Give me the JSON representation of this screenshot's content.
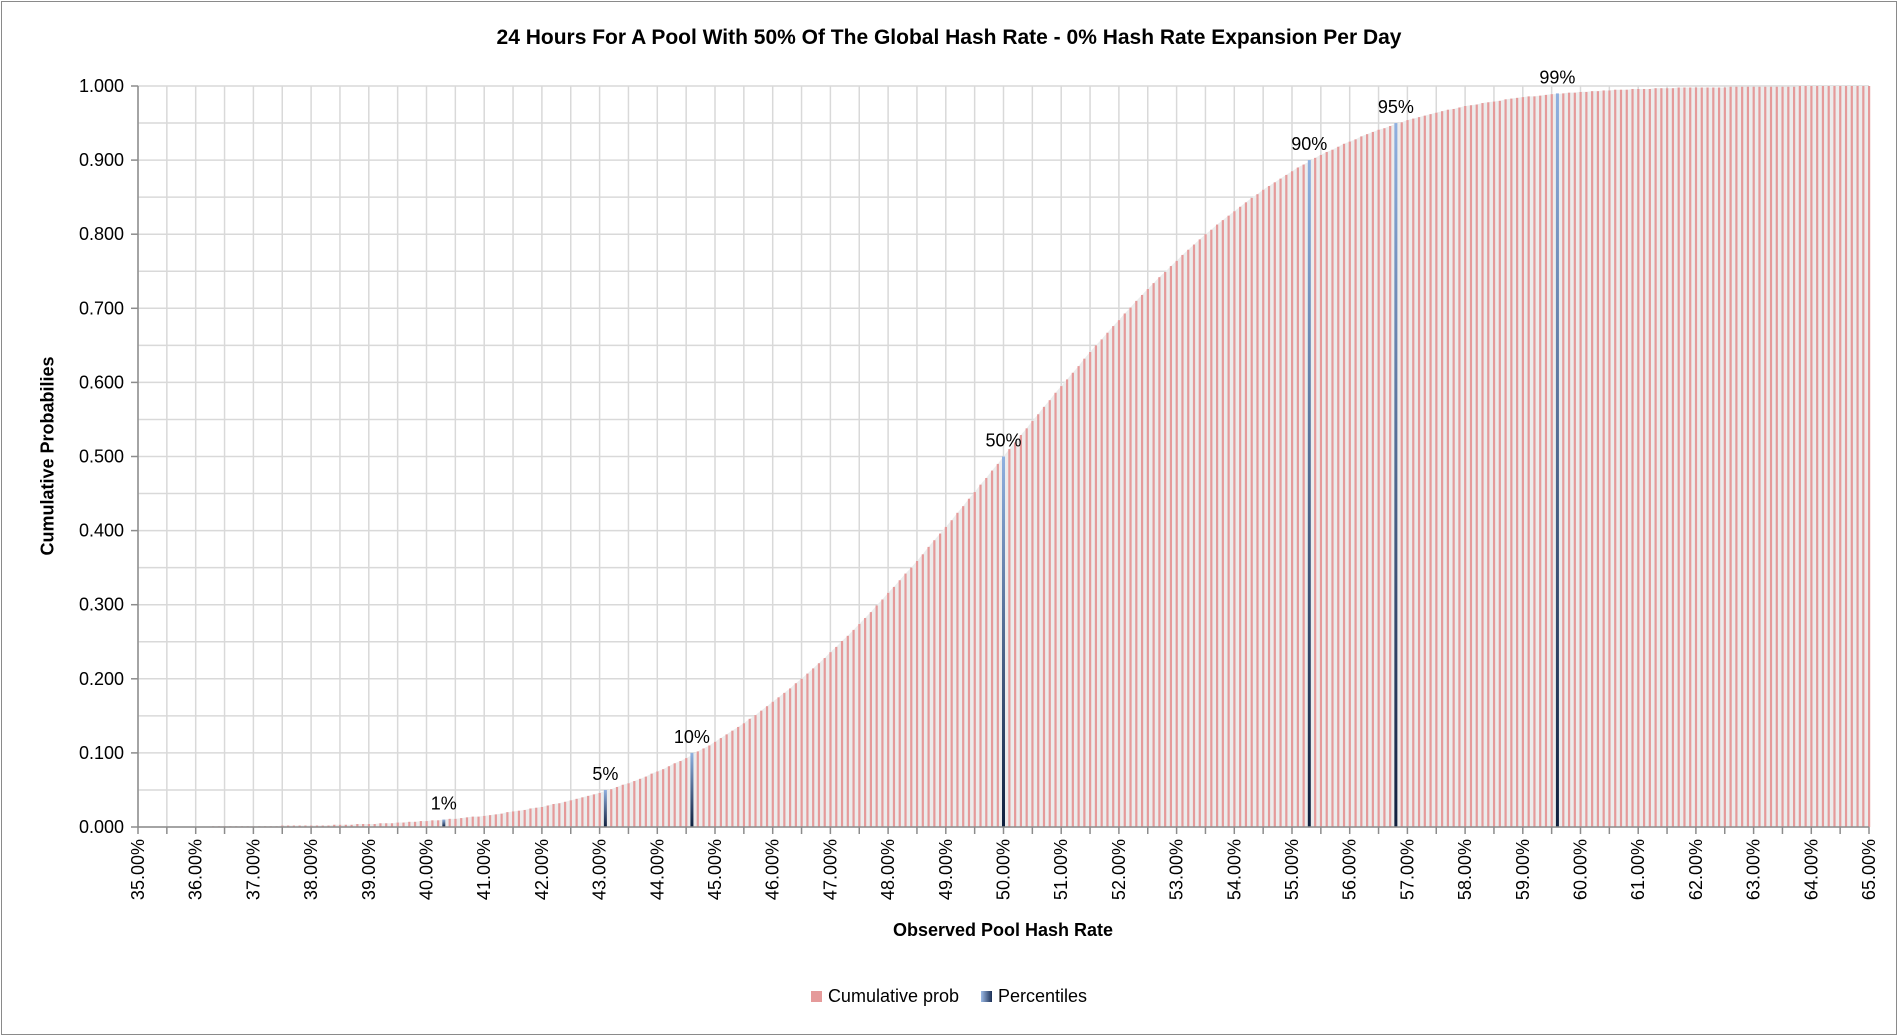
{
  "chart_data": {
    "type": "bar",
    "title": "24 Hours For A Pool With 50% Of The Global Hash Rate - 0% Hash Rate Expansion Per Day",
    "xlabel": "Observed Pool Hash Rate",
    "ylabel": "Cumulative Probabilies",
    "xlim": [
      35,
      65
    ],
    "ylim": [
      0,
      1
    ],
    "x_step": 0.1,
    "x_tick_labels": [
      "35.00%",
      "36.00%",
      "37.00%",
      "38.00%",
      "39.00%",
      "40.00%",
      "41.00%",
      "42.00%",
      "43.00%",
      "44.00%",
      "45.00%",
      "46.00%",
      "47.00%",
      "48.00%",
      "49.00%",
      "50.00%",
      "51.00%",
      "52.00%",
      "53.00%",
      "54.00%",
      "55.00%",
      "56.00%",
      "57.00%",
      "58.00%",
      "59.00%",
      "60.00%",
      "61.00%",
      "62.00%",
      "63.00%",
      "64.00%",
      "65.00%"
    ],
    "y_tick_labels": [
      "0.000",
      "0.100",
      "0.200",
      "0.300",
      "0.400",
      "0.500",
      "0.600",
      "0.700",
      "0.800",
      "0.900",
      "1.000"
    ],
    "grid": true,
    "legend_position": "bottom",
    "series": [
      {
        "name": "Cumulative prob",
        "color": "#e59a9a",
        "x_start": 35.0,
        "values": [
          0,
          0,
          0,
          0,
          0,
          0,
          0,
          0,
          0,
          0,
          0,
          0,
          0,
          0.001,
          0.001,
          0.001,
          0.001,
          0.001,
          0.001,
          0.001,
          0.001,
          0.001,
          0.001,
          0.001,
          0.001,
          0.002,
          0.002,
          0.002,
          0.002,
          0.002,
          0.002,
          0.002,
          0.002,
          0.002,
          0.003,
          0.003,
          0.003,
          0.003,
          0.004,
          0.004,
          0.004,
          0.004,
          0.005,
          0.005,
          0.005,
          0.006,
          0.006,
          0.007,
          0.007,
          0.008,
          0.008,
          0.009,
          0.009,
          0.01,
          0.011,
          0.011,
          0.012,
          0.013,
          0.014,
          0.014,
          0.015,
          0.016,
          0.017,
          0.018,
          0.02,
          0.021,
          0.022,
          0.023,
          0.025,
          0.026,
          0.027,
          0.029,
          0.031,
          0.032,
          0.034,
          0.036,
          0.038,
          0.04,
          0.042,
          0.044,
          0.046,
          0.049,
          0.051,
          0.054,
          0.057,
          0.059,
          0.062,
          0.065,
          0.068,
          0.072,
          0.075,
          0.078,
          0.082,
          0.086,
          0.089,
          0.093,
          0.097,
          0.102,
          0.106,
          0.11,
          0.115,
          0.12,
          0.125,
          0.13,
          0.135,
          0.14,
          0.146,
          0.151,
          0.157,
          0.163,
          0.169,
          0.175,
          0.181,
          0.187,
          0.194,
          0.2,
          0.207,
          0.214,
          0.221,
          0.228,
          0.236,
          0.243,
          0.251,
          0.258,
          0.266,
          0.274,
          0.282,
          0.29,
          0.299,
          0.307,
          0.316,
          0.324,
          0.333,
          0.342,
          0.35,
          0.359,
          0.368,
          0.378,
          0.387,
          0.396,
          0.405,
          0.414,
          0.424,
          0.433,
          0.443,
          0.452,
          0.462,
          0.471,
          0.481,
          0.49,
          0.5,
          0.51,
          0.519,
          0.529,
          0.538,
          0.548,
          0.557,
          0.567,
          0.576,
          0.586,
          0.595,
          0.604,
          0.613,
          0.622,
          0.632,
          0.641,
          0.65,
          0.658,
          0.667,
          0.676,
          0.684,
          0.693,
          0.701,
          0.71,
          0.718,
          0.726,
          0.734,
          0.742,
          0.749,
          0.757,
          0.764,
          0.772,
          0.779,
          0.786,
          0.793,
          0.8,
          0.806,
          0.813,
          0.819,
          0.825,
          0.831,
          0.837,
          0.843,
          0.849,
          0.854,
          0.86,
          0.865,
          0.87,
          0.875,
          0.88,
          0.885,
          0.89,
          0.894,
          0.898,
          0.903,
          0.907,
          0.911,
          0.914,
          0.918,
          0.922,
          0.925,
          0.928,
          0.932,
          0.935,
          0.938,
          0.941,
          0.943,
          0.946,
          0.949,
          0.951,
          0.954,
          0.956,
          0.958,
          0.96,
          0.962,
          0.964,
          0.966,
          0.968,
          0.969,
          0.971,
          0.973,
          0.974,
          0.975,
          0.977,
          0.978,
          0.979,
          0.98,
          0.982,
          0.983,
          0.984,
          0.985,
          0.986,
          0.986,
          0.987,
          0.988,
          0.989,
          0.989,
          0.99,
          0.991,
          0.991,
          0.992,
          0.992,
          0.993,
          0.993,
          0.994,
          0.994,
          0.995,
          0.995,
          0.995,
          0.996,
          0.996,
          0.996,
          0.996,
          0.997,
          0.997,
          0.997,
          0.997,
          0.998,
          0.998,
          0.998,
          0.998,
          0.998,
          0.998,
          0.998,
          0.998,
          0.998,
          0.999,
          0.999,
          0.999,
          0.999,
          0.999,
          0.999,
          0.999,
          0.999,
          0.999,
          0.999,
          0.999,
          0.999,
          1.0,
          1.0,
          1.0,
          1.0,
          1.0,
          1.0,
          1.0,
          1.0,
          1.0,
          1.0,
          1.0,
          1.0,
          1.0
        ]
      },
      {
        "name": "Percentiles",
        "color": "#1f3b6b",
        "points": [
          {
            "label": "1%",
            "x": 40.3,
            "y": 0.01
          },
          {
            "label": "5%",
            "x": 43.1,
            "y": 0.05
          },
          {
            "label": "10%",
            "x": 44.6,
            "y": 0.1
          },
          {
            "label": "50%",
            "x": 50.0,
            "y": 0.5
          },
          {
            "label": "90%",
            "x": 55.3,
            "y": 0.9
          },
          {
            "label": "95%",
            "x": 56.8,
            "y": 0.95
          },
          {
            "label": "99%",
            "x": 59.6,
            "y": 0.99
          }
        ]
      }
    ]
  }
}
